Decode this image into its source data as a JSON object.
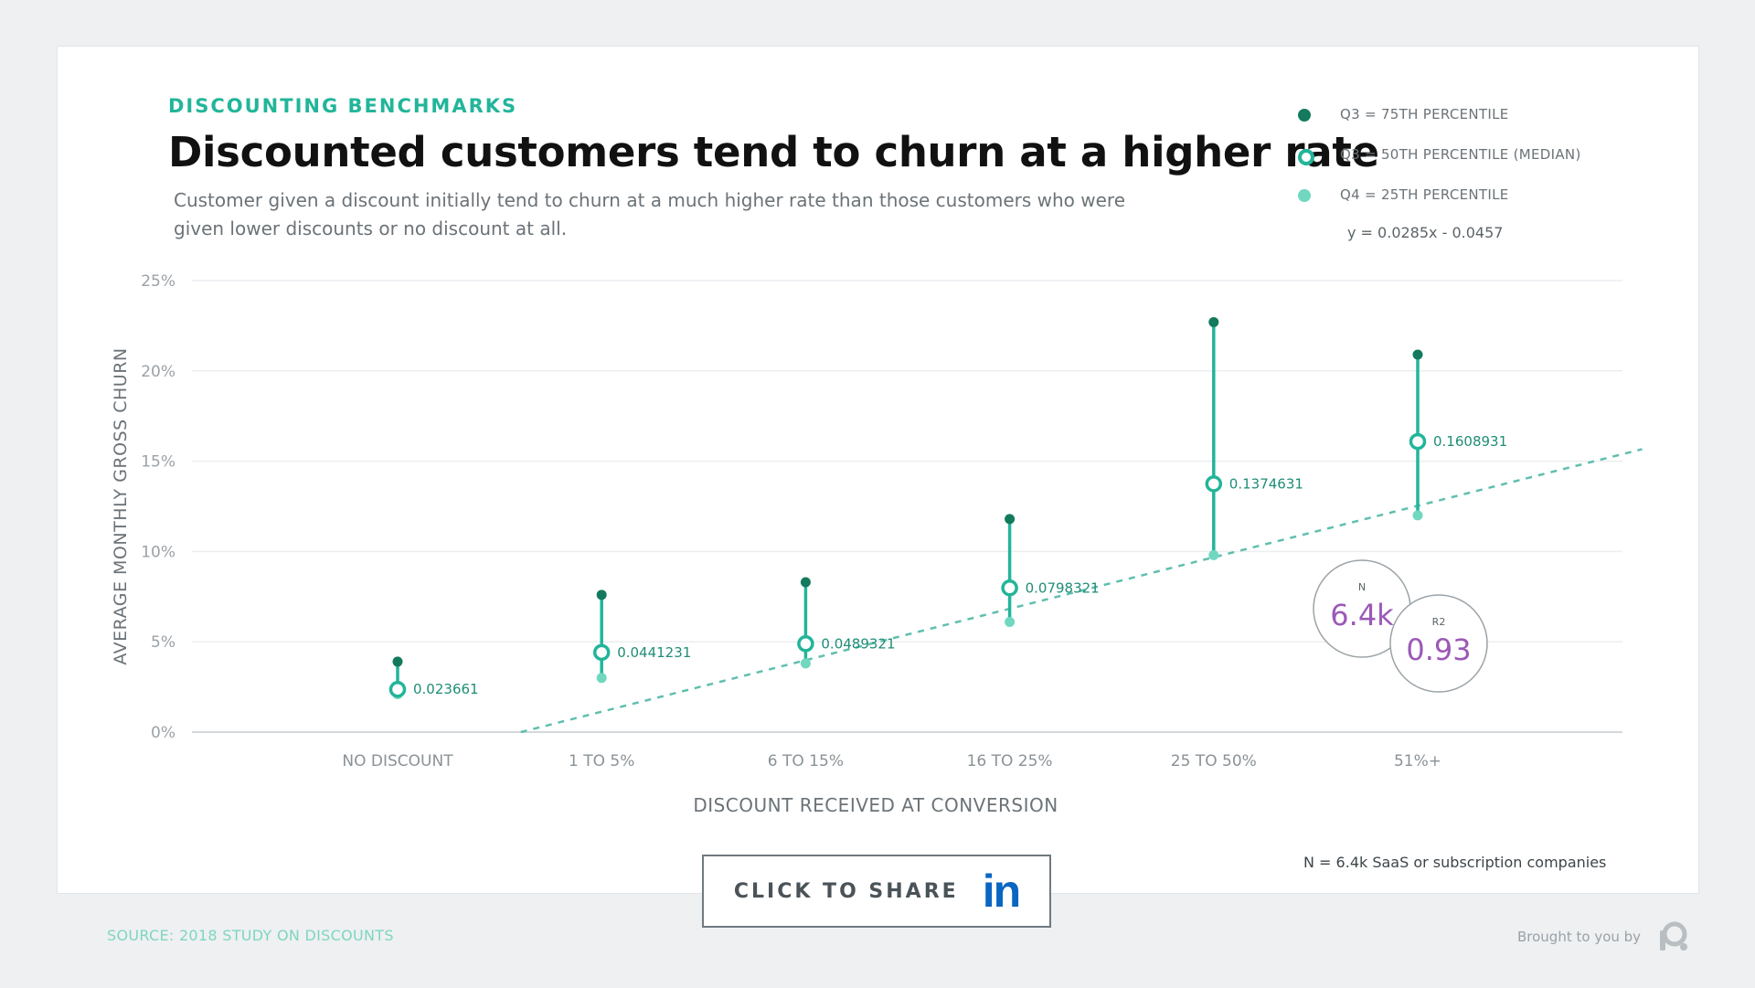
{
  "header": {
    "eyebrow": "DISCOUNTING BENCHMARKS",
    "title": "Discounted customers tend to churn at a higher rate",
    "subtitle": "Customer given a discount initially tend to churn at a much higher rate than those customers who were given lower discounts or no discount at all."
  },
  "legend": [
    {
      "label": "Q3 = 75TH PERCENTILE",
      "style": "filled-dark"
    },
    {
      "label": "Q3 = 50TH PERCENTILE (MEDIAN)",
      "style": "hollow"
    },
    {
      "label": "Q4 = 25TH PERCENTILE",
      "style": "filled-light"
    }
  ],
  "equation": "y = 0.0285x - 0.0457",
  "stats": {
    "n_label": "N",
    "n_value": "6.4k",
    "r2_label": "R2",
    "r2_value": "0.93"
  },
  "footnote": "N = 6.4k SaaS or subscription companies",
  "share": {
    "label": "CLICK TO SHARE",
    "icon": "in"
  },
  "footer": {
    "source": "SOURCE: 2018 STUDY ON DISCOUNTS",
    "brought_by": "Brought to you by",
    "brand_icon": "brand-logo-icon"
  },
  "colors": {
    "q3": "#137a5e",
    "median": "#22b59a",
    "q1": "#6fd8bf",
    "trend": "#5fbfae",
    "stat_value": "#9b59b6"
  },
  "chart_data": {
    "type": "scatter",
    "xlabel": "DISCOUNT RECEIVED AT CONVERSION",
    "ylabel": "AVERAGE MONTHLY GROSS CHURN",
    "categories": [
      "NO DISCOUNT",
      "1 TO 5%",
      "6 TO 15%",
      "16 TO 25%",
      "25 TO 50%",
      "51%+"
    ],
    "ylim": [
      0,
      0.25
    ],
    "yticks": [
      0,
      0.05,
      0.1,
      0.15,
      0.2,
      0.25
    ],
    "ytick_labels": [
      "0%",
      "5%",
      "10%",
      "15%",
      "20%",
      "25%"
    ],
    "series": [
      {
        "name": "Q3 = 75TH PERCENTILE",
        "values": [
          0.039,
          0.076,
          0.083,
          0.118,
          0.227,
          0.209
        ]
      },
      {
        "name": "Q3 = 50TH PERCENTILE (MEDIAN)",
        "values": [
          0.023661,
          0.0441231,
          0.0489321,
          0.0798321,
          0.1374631,
          0.1608931
        ]
      },
      {
        "name": "Q4 = 25TH PERCENTILE",
        "values": [
          0.021,
          0.03,
          0.038,
          0.061,
          0.098,
          0.12
        ]
      }
    ],
    "median_labels": [
      "0.023661",
      "0.0441231",
      "0.0489321",
      "0.0798321",
      "0.1374631",
      "0.1608931"
    ],
    "trendline": {
      "slope": 0.0285,
      "intercept": -0.0457
    },
    "grid": true
  }
}
